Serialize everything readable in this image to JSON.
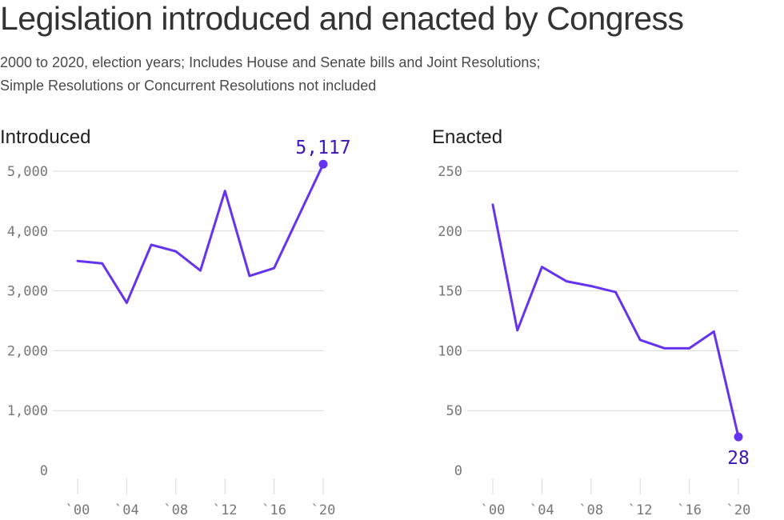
{
  "title": "Legislation introduced and enacted by Congress",
  "subtitle_lines": [
    "2000 to 2020, election years; Includes House and Senate bills and Joint Resolutions;",
    "Simple Resolutions or Concurrent Resolutions not included"
  ],
  "colors": {
    "line": "#6633ee",
    "label": "#3d14b8",
    "grid": "#d9d9d9"
  },
  "chart_data": [
    {
      "type": "line",
      "title": "Introduced",
      "x": [
        2000,
        2002,
        2004,
        2006,
        2008,
        2010,
        2012,
        2014,
        2016,
        2018,
        2020
      ],
      "x_tick_values": [
        2000,
        2004,
        2008,
        2012,
        2016,
        2020
      ],
      "x_tick_labels": [
        "`00",
        "`04",
        "`08",
        "`12",
        "`16",
        "`20"
      ],
      "xlim": [
        2000,
        2020
      ],
      "series": [
        {
          "values": [
            3500,
            3460,
            2800,
            3770,
            3660,
            3340,
            4670,
            3250,
            3380,
            4250,
            5117
          ]
        }
      ],
      "ylim": [
        0,
        5000
      ],
      "y_tick_values": [
        0,
        1000,
        2000,
        3000,
        4000,
        5000
      ],
      "y_tick_labels": [
        "0",
        "1,000",
        "2,000",
        "3,000",
        "4,000",
        "5,000"
      ],
      "grid": true,
      "annotation": {
        "x": 2020,
        "value": 5117,
        "label": "5,117",
        "position": "above"
      }
    },
    {
      "type": "line",
      "title": "Enacted",
      "x": [
        2000,
        2002,
        2004,
        2006,
        2008,
        2010,
        2012,
        2014,
        2016,
        2018,
        2020
      ],
      "x_tick_values": [
        2000,
        2004,
        2008,
        2012,
        2016,
        2020
      ],
      "x_tick_labels": [
        "`00",
        "`04",
        "`08",
        "`12",
        "`16",
        "`20"
      ],
      "xlim": [
        2000,
        2020
      ],
      "series": [
        {
          "values": [
            222,
            117,
            170,
            158,
            154,
            149,
            109,
            102,
            102,
            116,
            28
          ]
        }
      ],
      "ylim": [
        0,
        250
      ],
      "y_tick_values": [
        0,
        50,
        100,
        150,
        200,
        250
      ],
      "y_tick_labels": [
        "0",
        "50",
        "100",
        "150",
        "200",
        "250"
      ],
      "grid": true,
      "annotation": {
        "x": 2020,
        "value": 28,
        "label": "28",
        "position": "below"
      }
    }
  ]
}
